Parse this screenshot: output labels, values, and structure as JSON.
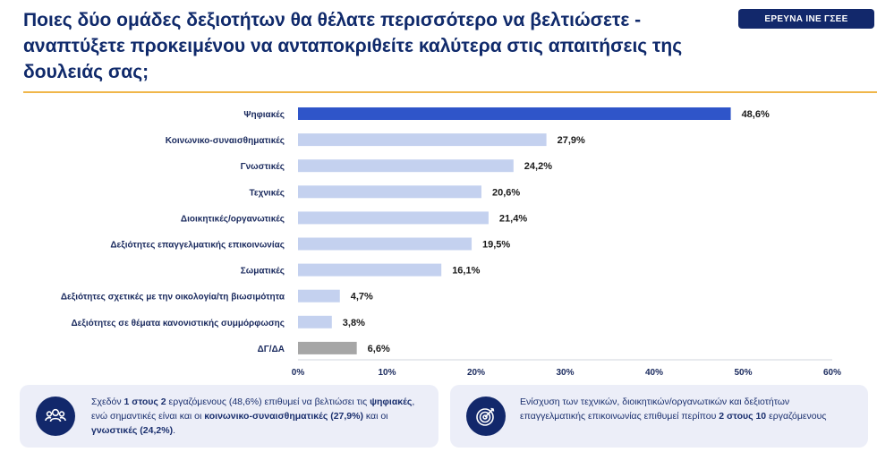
{
  "header": {
    "title": "Ποιες δύο ομάδες δεξιοτήτων θα θέλατε περισσότερο να βελτιώσετε - αναπτύξετε προκειμένου να ανταποκριθείτε καλύτερα στις απαιτήσεις της δουλειάς σας;",
    "badge": "ΕΡΕΥΝΑ ΙΝΕ ΓΣΕΕ"
  },
  "chart_data": {
    "type": "bar",
    "orientation": "horizontal",
    "categories": [
      "Ψηφιακές",
      "Κοινωνικο-συναισθηματικές",
      "Γνωστικές",
      "Τεχνικές",
      "Διοικητικές/οργανωτικές",
      "Δεξιότητες επαγγελματικής επικοινωνίας",
      "Σωματικές",
      "Δεξιότητες σχετικές με την οικολογία/τη βιωσιμότητα",
      "Δεξιότητες σε θέματα κανονιστικής συμμόρφωσης",
      "ΔΓ/ΔΑ"
    ],
    "values": [
      48.6,
      27.9,
      24.2,
      20.6,
      21.4,
      19.5,
      16.1,
      4.7,
      3.8,
      6.6
    ],
    "value_labels": [
      "48,6%",
      "27,9%",
      "24,2%",
      "20,6%",
      "21,4%",
      "19,5%",
      "16,1%",
      "4,7%",
      "3,8%",
      "6,6%"
    ],
    "xlim": [
      0,
      60
    ],
    "x_ticks": [
      0,
      10,
      20,
      30,
      40,
      50,
      60
    ],
    "x_tick_labels": [
      "0%",
      "10%",
      "20%",
      "30%",
      "40%",
      "50%",
      "60%"
    ],
    "grid": false,
    "colors": {
      "highlight": "#2f55c9",
      "default": "#c4d1ef",
      "no_answer": "#a6a6a6"
    },
    "bar_color_roles": [
      "highlight",
      "default",
      "default",
      "default",
      "default",
      "default",
      "default",
      "default",
      "default",
      "no_answer"
    ]
  },
  "panels": {
    "left": {
      "icon": "people-group-icon",
      "text_parts": [
        {
          "t": "Σχεδόν ",
          "b": false
        },
        {
          "t": "1 στους 2",
          "b": true
        },
        {
          "t": " εργαζόμενους (48,6%) επιθυμεί να βελτιώσει τις ",
          "b": false
        },
        {
          "t": "ψηφιακές",
          "b": true
        },
        {
          "t": ", ενώ σημαντικές είναι και οι ",
          "b": false
        },
        {
          "t": "κοινωνικο-συναισθηματικές",
          "b": true
        },
        {
          "t": " (27,9%)",
          "b": true
        },
        {
          "t": " και οι ",
          "b": false
        },
        {
          "t": "γνωστικές (24,2%)",
          "b": true
        },
        {
          "t": ".",
          "b": false
        }
      ]
    },
    "right": {
      "icon": "target-icon",
      "text_parts": [
        {
          "t": "Ενίσχυση των τεχνικών, διοικητικών/οργανωτικών και δεξιοτήτων επαγγελματικής επικοινωνίας επιθυμεί περίπου ",
          "b": false
        },
        {
          "t": "2 στους 10",
          "b": true
        },
        {
          "t": " εργαζόμενους",
          "b": false
        }
      ]
    }
  }
}
